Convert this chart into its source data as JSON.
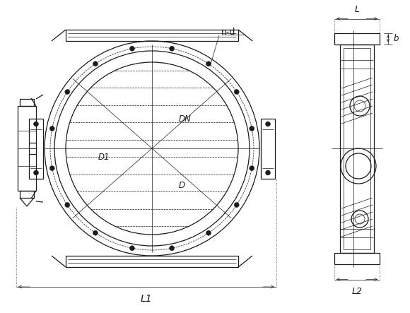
{
  "bg_color": "#ffffff",
  "line_color": "#1a1a1a",
  "thin_lw": 0.5,
  "medium_lw": 0.9,
  "thick_lw": 1.4,
  "fig_w": 5.8,
  "fig_h": 4.43,
  "labels": {
    "nd": "n-d",
    "DN": "DN",
    "D1": "D1",
    "D": "D",
    "L1": "L1",
    "L2": "L2",
    "L": "L",
    "b": "b"
  }
}
